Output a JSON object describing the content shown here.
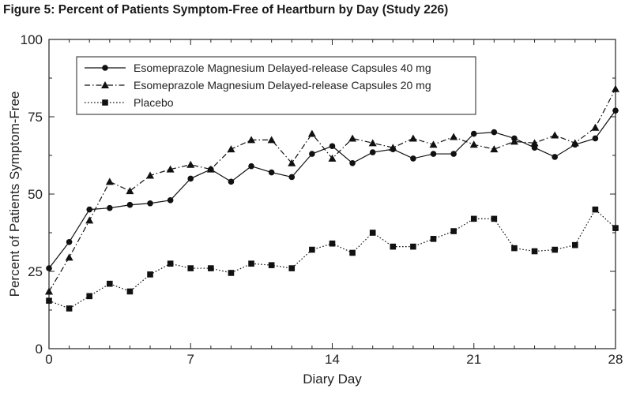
{
  "chart_data": {
    "type": "line",
    "title": "Figure 5: Percent of Patients Symptom-Free of Heartburn by Day (Study 226)",
    "xlabel": "Diary Day",
    "ylabel": "Percent of Patients Symptom-Free",
    "xlim": [
      0,
      28
    ],
    "ylim": [
      0,
      100
    ],
    "x_ticks": [
      0,
      7,
      14,
      21,
      28
    ],
    "y_ticks": [
      0,
      25,
      50,
      75,
      100
    ],
    "legend_position": "top-left",
    "x": [
      0,
      1,
      2,
      3,
      4,
      5,
      6,
      7,
      8,
      9,
      10,
      11,
      12,
      13,
      14,
      15,
      16,
      17,
      18,
      19,
      20,
      21,
      22,
      23,
      24,
      25,
      26,
      27,
      28
    ],
    "series": [
      {
        "name": "Esomeprazole Magnesium Delayed-release Capsules 40 mg",
        "marker": "circle",
        "dash": "solid",
        "values": [
          26,
          34.5,
          45,
          45.5,
          46.5,
          47,
          48,
          55,
          58,
          54,
          59,
          57,
          55.5,
          63,
          65.5,
          60,
          63.5,
          64.5,
          61.5,
          63,
          63,
          69.5,
          70,
          68,
          65,
          62,
          66,
          68,
          77
        ]
      },
      {
        "name": "Esomeprazole Magnesium Delayed-release Capsules 20 mg",
        "marker": "triangle",
        "dash": "dashdot",
        "values": [
          18.5,
          29.5,
          41.5,
          54,
          51,
          56,
          58,
          59.5,
          58,
          64.5,
          67.5,
          67.5,
          60,
          69.5,
          61.5,
          68,
          66.5,
          65,
          68,
          66,
          68.5,
          66,
          64.5,
          67,
          66.5,
          69,
          66.5,
          71.5,
          84
        ]
      },
      {
        "name": "Placebo",
        "marker": "square",
        "dash": "dotted",
        "values": [
          15.5,
          13,
          17,
          21,
          18.5,
          24,
          27.5,
          26,
          26,
          24.5,
          27.5,
          27,
          26,
          32,
          34,
          31,
          37.5,
          33,
          33,
          35.5,
          38,
          42,
          42,
          32.5,
          31.5,
          32,
          33.5,
          45,
          39
        ]
      }
    ]
  }
}
